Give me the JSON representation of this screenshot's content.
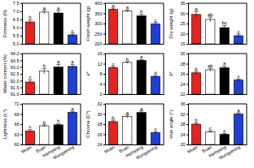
{
  "chart_data": [
    {
      "type": "bar",
      "ylabel": "Firmness (N)",
      "categories": [
        null,
        null,
        null,
        null
      ],
      "values": [
        6.35,
        6.95,
        6.9,
        5.55
      ],
      "errors": [
        0.12,
        0.1,
        0.15,
        0.1
      ],
      "annotations": [
        "b",
        "a",
        "a",
        "c"
      ],
      "colors": [
        "#e8231f",
        "#ffffff",
        "#000000",
        "#1f3fd8"
      ],
      "ylim": [
        5,
        7.5
      ],
      "yticks": [
        {
          "value": 5,
          "label": "5.0"
        },
        5.5,
        {
          "value": 6,
          "label": "6.0"
        },
        6.5,
        {
          "value": 7,
          "label": "7.0"
        },
        7.5
      ]
    },
    {
      "type": "bar",
      "ylabel": "Fresh weight (g)",
      "categories": [
        null,
        null,
        null,
        null
      ],
      "values": [
        370,
        362,
        338,
        298
      ],
      "errors": [
        6,
        5,
        8,
        7
      ],
      "annotations": [
        "a",
        "a",
        "b",
        "c"
      ],
      "colors": [
        "#e8231f",
        "#ffffff",
        "#000000",
        "#1f3fd8"
      ],
      "ylim": [
        200,
        400
      ],
      "yticks": [
        200,
        250,
        300,
        350,
        400
      ]
    },
    {
      "type": "bar",
      "ylabel": "Dry weight (g)",
      "categories": [
        null,
        null,
        null,
        null
      ],
      "values": [
        29.5,
        27,
        23,
        19
      ],
      "errors": [
        1.5,
        1.2,
        1,
        0.8
      ],
      "annotations": [
        "a",
        "ab",
        "bc",
        "c"
      ],
      "colors": [
        "#e8231f",
        "#ffffff",
        "#000000",
        "#1f3fd8"
      ],
      "ylim": [
        15,
        35
      ],
      "yticks": [
        15,
        20,
        25,
        30,
        35
      ]
    },
    {
      "type": "bar",
      "ylabel": "Water content (%)",
      "categories": [
        null,
        null,
        null,
        null
      ],
      "values": [
        91.9,
        92.7,
        93.0,
        93.05
      ],
      "errors": [
        0.15,
        0.2,
        0.2,
        0.15
      ],
      "annotations": [
        "c",
        "b",
        "a",
        "a"
      ],
      "colors": [
        "#e8231f",
        "#ffffff",
        "#000000",
        "#1f3fd8"
      ],
      "ylim": [
        91,
        94
      ],
      "yticks": [
        {
          "value": 91,
          "label": "91.0"
        },
        91.5,
        {
          "value": 92,
          "label": "92.0"
        },
        92.5,
        {
          "value": 93,
          "label": "93.0"
        },
        93.5,
        {
          "value": 94,
          "label": "94.0"
        }
      ]
    },
    {
      "type": "bar",
      "ylabel": "a*",
      "categories": [
        null,
        null,
        null,
        null
      ],
      "values": [
        10.5,
        12.5,
        13.3,
        7
      ],
      "errors": [
        0.4,
        0.3,
        0.3,
        0.3
      ],
      "annotations": [
        "c",
        "b",
        "a",
        "d"
      ],
      "colors": [
        "#e8231f",
        "#ffffff",
        "#000000",
        "#1f3fd8"
      ],
      "ylim": [
        0,
        16
      ],
      "yticks": [
        0,
        4,
        8,
        12,
        16
      ]
    },
    {
      "type": "bar",
      "ylabel": "b*",
      "categories": [
        null,
        null,
        null,
        null
      ],
      "values": [
        26.2,
        26.8,
        27.2,
        24.8
      ],
      "errors": [
        0.3,
        0.3,
        0.3,
        0.2
      ],
      "annotations": [
        "b",
        "ab",
        "a",
        "c"
      ],
      "colors": [
        "#e8231f",
        "#ffffff",
        "#000000",
        "#1f3fd8"
      ],
      "ylim": [
        22,
        30
      ],
      "yticks": [
        22,
        24,
        26,
        28,
        30
      ]
    },
    {
      "type": "bar",
      "ylabel": "Lightness (L*)",
      "categories": [
        "Muan",
        "Buan",
        "Hamyang",
        "Mungyeong"
      ],
      "values": [
        64,
        65.5,
        65.8,
        69.5
      ],
      "errors": [
        0.4,
        0.3,
        0.3,
        0.3
      ],
      "annotations": [
        "c",
        "b",
        "b",
        "a"
      ],
      "colors": [
        "#e8231f",
        "#ffffff",
        "#000000",
        "#1f3fd8"
      ],
      "ylim": [
        60,
        72
      ],
      "yticks": [
        60,
        63,
        66,
        69,
        72
      ]
    },
    {
      "type": "bar",
      "ylabel": "Chroma (C*)",
      "categories": [
        "Muan",
        "Buan",
        "Hamyang",
        "Mungyeong"
      ],
      "values": [
        28.5,
        29.5,
        30.3,
        26.3
      ],
      "errors": [
        0.3,
        0.3,
        0.3,
        0.2
      ],
      "annotations": [
        "b",
        "a",
        "a",
        "c"
      ],
      "colors": [
        "#e8231f",
        "#ffffff",
        "#000000",
        "#1f3fd8"
      ],
      "ylim": [
        24,
        32
      ],
      "yticks": [
        24,
        26,
        28,
        30,
        32
      ]
    },
    {
      "type": "bar",
      "ylabel": "Hue angle (°)",
      "categories": [
        "Muan",
        "Buan",
        "Hamyang",
        "Mungyeong"
      ],
      "values": [
        28,
        25,
        24,
        32
      ],
      "errors": [
        0.5,
        0.4,
        0.4,
        0.5
      ],
      "annotations": [
        "b",
        "c",
        "c",
        "a"
      ],
      "colors": [
        "#e8231f",
        "#ffffff",
        "#000000",
        "#1f3fd8"
      ],
      "ylim": [
        20,
        36
      ],
      "yticks": [
        20,
        24,
        28,
        32,
        36
      ]
    }
  ]
}
